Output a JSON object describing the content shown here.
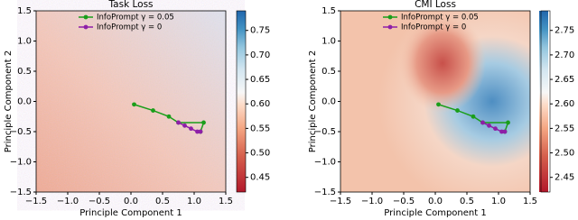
{
  "chart_data": [
    {
      "type": "line",
      "title": "Task Loss",
      "xlabel": "Principle Component 1",
      "ylabel": "Principle Component 2",
      "xlim": [
        -1.5,
        1.5
      ],
      "ylim": [
        -1.5,
        1.5
      ],
      "xticks": [
        {
          "value": -1.5,
          "label": "−1.5"
        },
        {
          "value": -1.0,
          "label": "−1.0"
        },
        {
          "value": -0.5,
          "label": "−0.5"
        },
        {
          "value": 0,
          "label": "0.0"
        },
        {
          "value": 0.5,
          "label": "0.5"
        },
        {
          "value": 1.0,
          "label": "1.0"
        },
        {
          "value": 1.5,
          "label": "1.5"
        }
      ],
      "yticks": [
        {
          "value": -1.5,
          "label": "−1.5"
        },
        {
          "value": -1.0,
          "label": "−1.0"
        },
        {
          "value": -0.5,
          "label": "−0.5"
        },
        {
          "value": 0,
          "label": "0.0"
        },
        {
          "value": 0.5,
          "label": "0.5"
        },
        {
          "value": 1.0,
          "label": "1.0"
        },
        {
          "value": 1.5,
          "label": "1.5"
        }
      ],
      "legend": "upper center",
      "series": [
        {
          "name": "InfoPrompt γ = 0.05",
          "color": "#1a9e1a",
          "x": [
            0.05,
            0.35,
            0.6,
            0.75,
            1.15,
            1.1
          ],
          "values": [
            -0.05,
            -0.15,
            -0.25,
            -0.35,
            -0.35,
            -0.5
          ]
        },
        {
          "name": "InfoPrompt γ = 0",
          "color": "#8e1fa8",
          "x": [
            0.75,
            0.85,
            0.95,
            1.05,
            1.1
          ],
          "values": [
            -0.35,
            -0.4,
            -0.45,
            -0.5,
            -0.5
          ]
        }
      ],
      "colorbar": {
        "colormap": "RdBu",
        "clim": [
          0.42,
          0.79
        ],
        "cticks": [
          0.45,
          {
            "value": 0.5,
            "label": "0.50"
          },
          0.55,
          {
            "value": 0.6,
            "label": "0.60"
          },
          0.65,
          {
            "value": 0.7,
            "label": "0.70"
          },
          0.75
        ]
      }
    },
    {
      "type": "line",
      "title": "CMI Loss",
      "xlabel": "Principle Component 1",
      "ylabel": "Principle Component 2",
      "xlim": [
        -1.5,
        1.5
      ],
      "ylim": [
        -1.5,
        1.5
      ],
      "xticks": [
        {
          "value": -1.5,
          "label": "−1.5"
        },
        {
          "value": -1.0,
          "label": "−1.0"
        },
        {
          "value": -0.5,
          "label": "−0.5"
        },
        {
          "value": 0,
          "label": "0.0"
        },
        {
          "value": 0.5,
          "label": "0.5"
        },
        {
          "value": 1.0,
          "label": "1.0"
        },
        {
          "value": 1.5,
          "label": "1.5"
        }
      ],
      "yticks": [
        {
          "value": -1.5,
          "label": "−1.5"
        },
        {
          "value": -1.0,
          "label": "−1.0"
        },
        {
          "value": -0.5,
          "label": "−0.5"
        },
        {
          "value": 0,
          "label": "0.0"
        },
        {
          "value": 0.5,
          "label": "0.5"
        },
        {
          "value": 1.0,
          "label": "1.0"
        },
        {
          "value": 1.5,
          "label": "1.5"
        }
      ],
      "legend": "upper center",
      "series": [
        {
          "name": "InfoPrompt γ = 0.05",
          "color": "#1a9e1a",
          "x": [
            0.05,
            0.35,
            0.6,
            0.75,
            1.15,
            1.1
          ],
          "values": [
            -0.05,
            -0.15,
            -0.25,
            -0.35,
            -0.35,
            -0.5
          ]
        },
        {
          "name": "InfoPrompt γ = 0",
          "color": "#8e1fa8",
          "x": [
            0.75,
            0.85,
            0.95,
            1.05,
            1.1
          ],
          "values": [
            -0.35,
            -0.4,
            -0.45,
            -0.5,
            -0.5
          ]
        }
      ],
      "colorbar": {
        "colormap": "RdBu",
        "clim": [
          2.42,
          2.79
        ],
        "cticks": [
          2.45,
          {
            "value": 2.5,
            "label": "2.50"
          },
          2.55,
          {
            "value": 2.6,
            "label": "2.60"
          },
          2.65,
          {
            "value": 2.7,
            "label": "2.70"
          },
          2.75
        ]
      }
    }
  ]
}
